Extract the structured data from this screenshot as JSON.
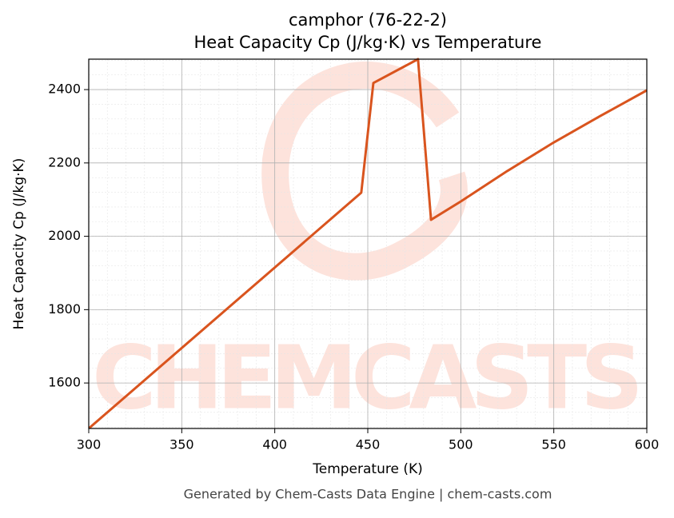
{
  "chart_data": {
    "type": "line",
    "title": "camphor (76-22-2)",
    "subtitle": "Heat Capacity Cp (J/kg·K) vs Temperature",
    "x_label": "Temperature (K)",
    "y_label": "Heat Capacity Cp (J/kg·K)",
    "watermark": "CHEMCASTS",
    "footer": "Generated by Chem-Casts Data Engine | chem-casts.com",
    "x": [
      300,
      446.5,
      453,
      477,
      484,
      500,
      525,
      550,
      575,
      600
    ],
    "series": [
      {
        "name": "Cp",
        "color": "#d9541e",
        "values": [
          1476,
          2119,
          2418,
          2483,
          2045,
          2095,
          2178,
          2256,
          2328,
          2398
        ]
      }
    ],
    "xlim": [
      300,
      600
    ],
    "xticks": [
      300,
      350,
      400,
      450,
      500,
      550,
      600
    ],
    "ylim": [
      1476,
      2483
    ],
    "yticks": [
      1600,
      1800,
      2000,
      2200,
      2400
    ],
    "grid": true
  }
}
